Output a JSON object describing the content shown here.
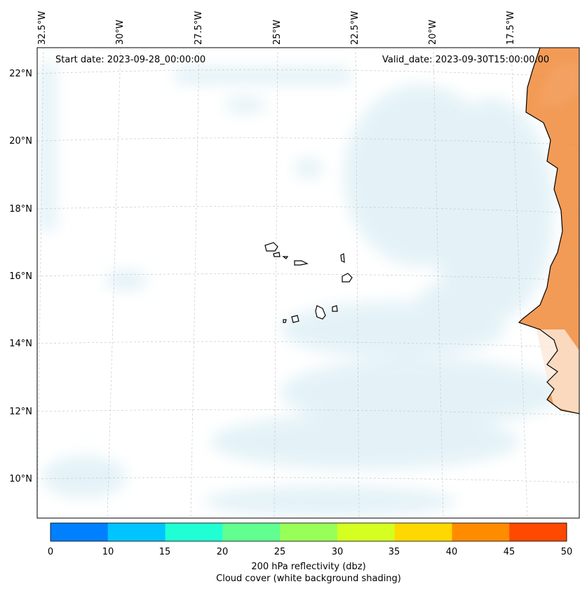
{
  "map": {
    "start_date": "Start date: 2023-09-28_00:00:00",
    "valid_date": "Valid_date: 2023-09-30T15:00:00.00",
    "lat_labels": [
      "22°N",
      "20°N",
      "18°N",
      "16°N",
      "14°N",
      "12°N",
      "10°N"
    ],
    "lon_labels": [
      "32.5°W",
      "30°W",
      "27.5°W",
      "25°W",
      "22.5°W",
      "20°W",
      "17.5°W"
    ],
    "ocean_color": "#ffffff",
    "cloud_color": "#cfe8f1",
    "land_reflectivity_color": "#f08a3a"
  },
  "colorbar": {
    "ticks": [
      "0",
      "10",
      "15",
      "20",
      "25",
      "30",
      "35",
      "40",
      "45",
      "50"
    ],
    "colors": [
      "#0080ff",
      "#00c4ff",
      "#20ffd4",
      "#60ff90",
      "#98ff58",
      "#d4ff20",
      "#ffd800",
      "#ff8c00",
      "#ff4800"
    ],
    "label_line1": "200 hPa reflectivity (dbz)",
    "label_line2": "Cloud cover (white background shading)"
  }
}
